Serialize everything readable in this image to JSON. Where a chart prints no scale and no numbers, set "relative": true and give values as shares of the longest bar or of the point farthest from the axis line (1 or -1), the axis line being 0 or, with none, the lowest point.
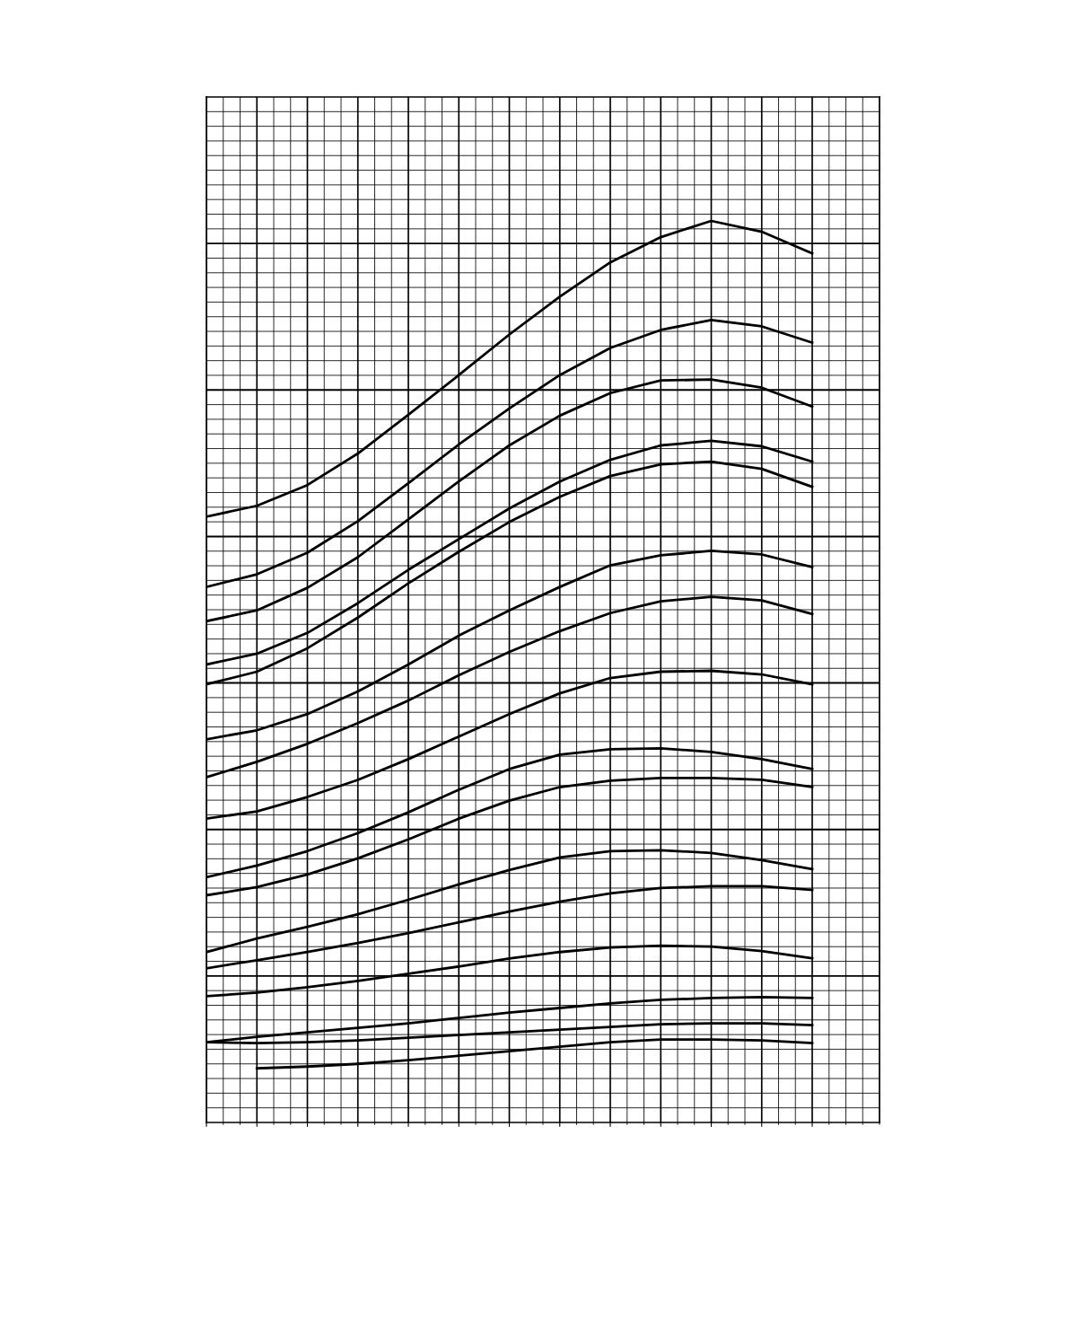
{
  "chart_data": {
    "type": "line",
    "relative": true,
    "grid": true,
    "legend": false,
    "marker": "none",
    "line_style": "solid",
    "categories": [
      null,
      null,
      null,
      null,
      null,
      null,
      null,
      null,
      null,
      null,
      null,
      null,
      null
    ],
    "series": [
      {
        "color": "#000000",
        "values": [
          0.672,
          0.684,
          0.707,
          0.742,
          0.785,
          0.829,
          0.874,
          0.916,
          0.954,
          0.982,
          1,
          0.988,
          0.964
        ]
      },
      {
        "color": "#000000",
        "values": [
          0.594,
          0.608,
          0.632,
          0.667,
          0.709,
          0.752,
          0.792,
          0.829,
          0.859,
          0.879,
          0.89,
          0.883,
          0.865
        ]
      },
      {
        "color": "#000000",
        "values": [
          0.556,
          0.568,
          0.593,
          0.627,
          0.669,
          0.711,
          0.751,
          0.784,
          0.809,
          0.823,
          0.824,
          0.815,
          0.794
        ]
      },
      {
        "color": "#000000",
        "values": [
          0.508,
          0.52,
          0.543,
          0.576,
          0.613,
          0.647,
          0.681,
          0.711,
          0.735,
          0.751,
          0.756,
          0.75,
          0.733
        ]
      },
      {
        "color": "#000000",
        "values": [
          0.486,
          0.5,
          0.526,
          0.56,
          0.598,
          0.633,
          0.666,
          0.694,
          0.717,
          0.73,
          0.733,
          0.725,
          0.705
        ]
      },
      {
        "color": "#000000",
        "values": [
          0.425,
          0.435,
          0.453,
          0.478,
          0.508,
          0.54,
          0.568,
          0.594,
          0.618,
          0.629,
          0.634,
          0.63,
          0.616
        ]
      },
      {
        "color": "#000000",
        "values": [
          0.383,
          0.4,
          0.42,
          0.443,
          0.468,
          0.496,
          0.522,
          0.545,
          0.565,
          0.578,
          0.583,
          0.579,
          0.564
        ]
      },
      {
        "color": "#000000",
        "values": [
          0.337,
          0.345,
          0.361,
          0.38,
          0.403,
          0.428,
          0.453,
          0.476,
          0.493,
          0.5,
          0.501,
          0.497,
          0.486
        ]
      },
      {
        "color": "#000000",
        "values": [
          0.272,
          0.285,
          0.301,
          0.321,
          0.344,
          0.369,
          0.392,
          0.408,
          0.414,
          0.415,
          0.411,
          0.403,
          0.392
        ]
      },
      {
        "color": "#000000",
        "values": [
          0.252,
          0.261,
          0.275,
          0.293,
          0.314,
          0.337,
          0.357,
          0.372,
          0.379,
          0.382,
          0.382,
          0.38,
          0.372
        ]
      },
      {
        "color": "#000000",
        "values": [
          0.189,
          0.204,
          0.217,
          0.231,
          0.247,
          0.264,
          0.28,
          0.294,
          0.301,
          0.302,
          0.299,
          0.291,
          0.281
        ]
      },
      {
        "color": "#000000",
        "values": [
          0.171,
          0.18,
          0.189,
          0.199,
          0.21,
          0.222,
          0.234,
          0.245,
          0.254,
          0.26,
          0.262,
          0.262,
          0.258
        ]
      },
      {
        "color": "#000000",
        "values": [
          0.14,
          0.144,
          0.15,
          0.157,
          0.165,
          0.173,
          0.182,
          0.189,
          0.194,
          0.196,
          0.195,
          0.19,
          0.182
        ]
      },
      {
        "color": "#000000",
        "values": [
          0.089,
          0.095,
          0.1,
          0.105,
          0.11,
          0.116,
          0.122,
          0.127,
          0.132,
          0.136,
          0.138,
          0.139,
          0.138
        ]
      },
      {
        "color": "#000000",
        "values": [
          0.089,
          0.088,
          0.089,
          0.091,
          0.094,
          0.097,
          0.1,
          0.103,
          0.106,
          0.109,
          0.11,
          0.11,
          0.108
        ]
      },
      {
        "color": "#000000",
        "values": [
          null,
          0.06,
          0.062,
          0.065,
          0.069,
          0.074,
          0.079,
          0.084,
          0.089,
          0.092,
          0.092,
          0.091,
          0.088
        ]
      }
    ]
  }
}
